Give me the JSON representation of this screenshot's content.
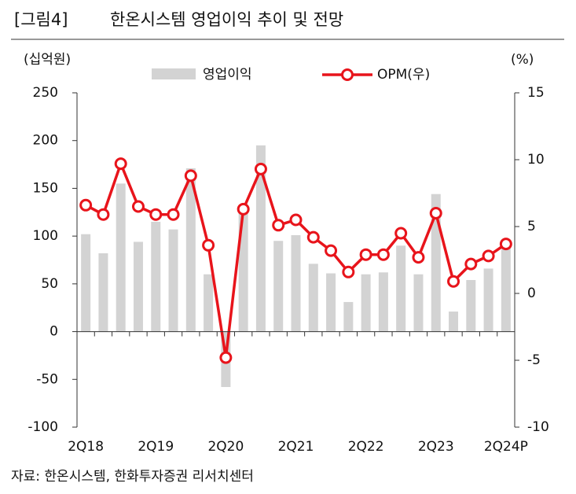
{
  "chart_data": {
    "type": "bar_line",
    "figure_label": "[그림4]",
    "title": "한온시스템 영업이익 추이 및 전망",
    "y_label": "(십억원)",
    "y2_label": "(%)",
    "source": "자료: 한온시스템, 한화투자증권 리서치센터",
    "categories": [
      "2Q18",
      null,
      null,
      null,
      "2Q19",
      null,
      null,
      null,
      "2Q20",
      null,
      null,
      null,
      "2Q21",
      null,
      null,
      null,
      "2Q22",
      null,
      null,
      null,
      "2Q23",
      null,
      null,
      null,
      "2Q24P"
    ],
    "series": [
      {
        "name": "영업이익",
        "type": "bar",
        "color": "#d3d3d3",
        "values": [
          102,
          82,
          155,
          94,
          115,
          107,
          171,
          60,
          -58,
          130,
          195,
          95,
          101,
          71,
          61,
          31,
          60,
          62,
          90,
          60,
          144,
          21,
          54,
          66,
          90
        ]
      },
      {
        "name": "OPM(우)",
        "type": "line",
        "axis": "y2",
        "color": "#e8141b",
        "values": [
          6.6,
          5.9,
          9.7,
          6.5,
          5.9,
          5.9,
          8.8,
          3.6,
          -4.8,
          6.3,
          9.3,
          5.1,
          5.5,
          4.2,
          3.2,
          1.6,
          2.9,
          2.9,
          4.5,
          2.7,
          6.0,
          0.9,
          2.2,
          2.8,
          3.7
        ]
      }
    ],
    "ylim": [
      -100,
      250
    ],
    "yticks": [
      -100,
      -50,
      0,
      50,
      100,
      150,
      200,
      250
    ],
    "y2lim": [
      -10,
      15
    ],
    "y2ticks": [
      -10,
      -5,
      0,
      5,
      10,
      15
    ]
  }
}
